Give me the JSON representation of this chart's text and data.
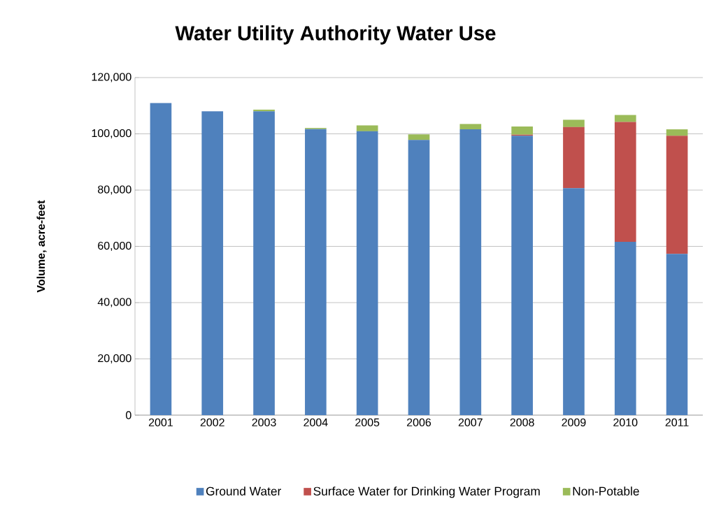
{
  "chart_data": {
    "type": "bar",
    "title": "Water Utility Authority Water Use",
    "ylabel": "Volume, acre-feet",
    "categories": [
      "2001",
      "2002",
      "2003",
      "2004",
      "2005",
      "2006",
      "2007",
      "2008",
      "2009",
      "2010",
      "2011"
    ],
    "stacked": true,
    "series": [
      {
        "name": "Ground Water",
        "color": "#4f81bd",
        "values": [
          111000,
          108000,
          108000,
          101700,
          100900,
          97800,
          101600,
          99300,
          80700,
          61600,
          57300
        ]
      },
      {
        "name": "Surface Water for Drinking Water Program",
        "color": "#c0504d",
        "values": [
          0,
          0,
          0,
          0,
          0,
          0,
          0,
          400,
          21700,
          42600,
          42000
        ]
      },
      {
        "name": "Non-Potable",
        "color": "#9bbb59",
        "values": [
          0,
          0,
          600,
          400,
          2100,
          2000,
          1900,
          2900,
          2600,
          2500,
          2300
        ]
      }
    ],
    "ylim": [
      0,
      120000
    ],
    "yticks": [
      {
        "value": 0,
        "label": "0"
      },
      {
        "value": 20000,
        "label": "20,000"
      },
      {
        "value": 40000,
        "label": "40,000"
      },
      {
        "value": 60000,
        "label": "60,000"
      },
      {
        "value": 80000,
        "label": "80,000"
      },
      {
        "value": 100000,
        "label": "100,000"
      },
      {
        "value": 120000,
        "label": "120,000"
      }
    ],
    "grid": "y",
    "legend": "bottom"
  }
}
